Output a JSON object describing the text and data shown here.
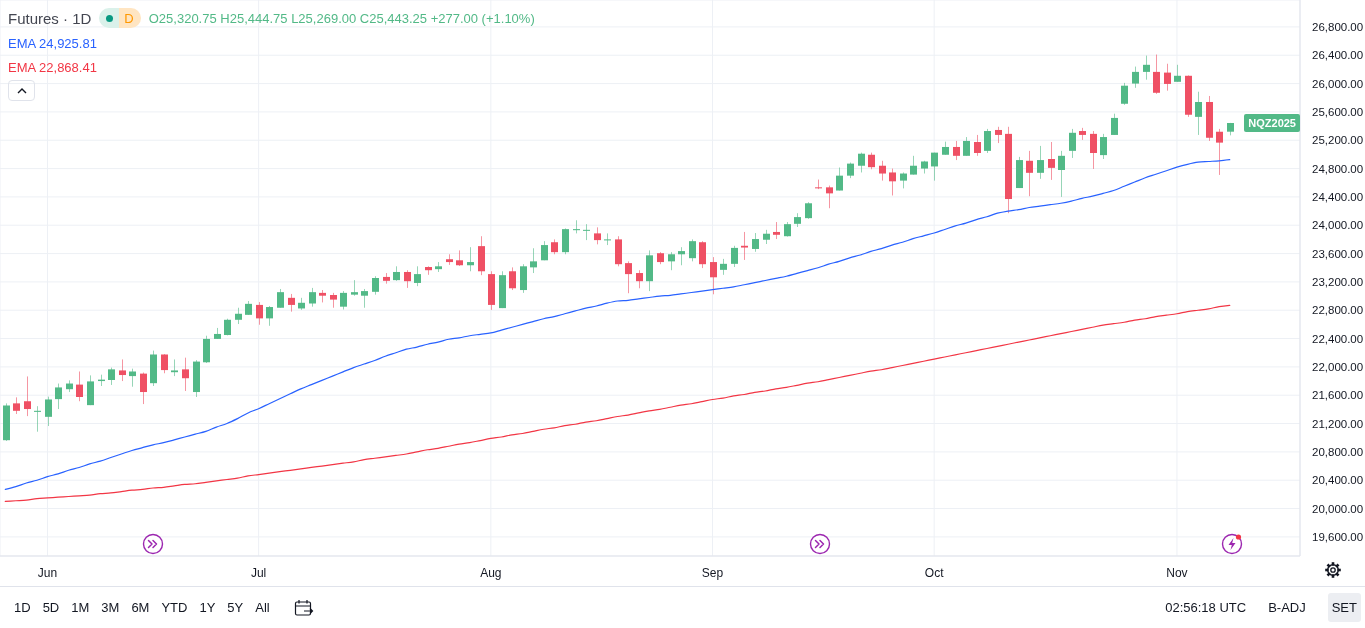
{
  "chart_data": {
    "type": "candlestick",
    "title": "Futures · 1D",
    "categories": [
      null,
      null,
      null,
      null,
      "Jun",
      null,
      null,
      null,
      null,
      null,
      null,
      null,
      null,
      null,
      null,
      null,
      null,
      null,
      null,
      null,
      null,
      null,
      null,
      null,
      "Jul",
      null,
      null,
      null,
      null,
      null,
      null,
      null,
      null,
      null,
      null,
      null,
      null,
      null,
      null,
      null,
      null,
      null,
      null,
      null,
      null,
      null,
      "Aug",
      null,
      null,
      null,
      null,
      null,
      null,
      null,
      null,
      null,
      null,
      null,
      null,
      null,
      null,
      null,
      null,
      null,
      null,
      null,
      null,
      "Sep",
      null,
      null,
      null,
      null,
      null,
      null,
      null,
      null,
      null,
      null,
      null,
      null,
      null,
      null,
      null,
      null,
      null,
      null,
      null,
      null,
      "Oct",
      null,
      null,
      null,
      null,
      null,
      null,
      null,
      null,
      null,
      null,
      null,
      null,
      null,
      null,
      null,
      null,
      null,
      null,
      null,
      null,
      null,
      null,
      "Nov",
      null,
      null,
      null,
      null,
      null
    ],
    "ohlc": [
      [
        20965,
        21485,
        20955,
        21455
      ],
      [
        21485,
        21570,
        21335,
        21380
      ],
      [
        21515,
        21865,
        21305,
        21405
      ],
      [
        21365,
        21445,
        21085,
        21380
      ],
      [
        21295,
        21580,
        21165,
        21540
      ],
      [
        21545,
        21765,
        21405,
        21710
      ],
      [
        21685,
        21810,
        21645,
        21765
      ],
      [
        21750,
        21935,
        21515,
        21575
      ],
      [
        21460,
        21880,
        21460,
        21795
      ],
      [
        21800,
        21890,
        21730,
        21820
      ],
      [
        21815,
        21990,
        21745,
        21965
      ],
      [
        21950,
        22105,
        21800,
        21885
      ],
      [
        21870,
        21975,
        21720,
        21935
      ],
      [
        21905,
        21920,
        21475,
        21645
      ],
      [
        21770,
        22230,
        21730,
        22175
      ],
      [
        22175,
        22180,
        21910,
        21955
      ],
      [
        21925,
        22105,
        21870,
        21950
      ],
      [
        21965,
        22130,
        21660,
        21840
      ],
      [
        21645,
        22095,
        21575,
        22075
      ],
      [
        22065,
        22440,
        22055,
        22395
      ],
      [
        22395,
        22550,
        22395,
        22465
      ],
      [
        22450,
        22680,
        22445,
        22665
      ],
      [
        22665,
        22835,
        22605,
        22750
      ],
      [
        22735,
        22930,
        22735,
        22890
      ],
      [
        22875,
        22915,
        22595,
        22685
      ],
      [
        22685,
        22860,
        22580,
        22845
      ],
      [
        22835,
        23100,
        22835,
        23055
      ],
      [
        22975,
        23030,
        22780,
        22875
      ],
      [
        22825,
        22975,
        22805,
        22905
      ],
      [
        22895,
        23115,
        22850,
        23055
      ],
      [
        23045,
        23085,
        22910,
        23005
      ],
      [
        23015,
        23045,
        22835,
        22950
      ],
      [
        22850,
        23070,
        22810,
        23045
      ],
      [
        23020,
        23225,
        23005,
        23055
      ],
      [
        23005,
        23100,
        22835,
        23070
      ],
      [
        23060,
        23280,
        23020,
        23255
      ],
      [
        23270,
        23325,
        23175,
        23215
      ],
      [
        23225,
        23420,
        23215,
        23340
      ],
      [
        23340,
        23365,
        23115,
        23210
      ],
      [
        23185,
        23420,
        23140,
        23310
      ],
      [
        23410,
        23420,
        23300,
        23365
      ],
      [
        23380,
        23480,
        23340,
        23420
      ],
      [
        23520,
        23590,
        23440,
        23480
      ],
      [
        23505,
        23645,
        23425,
        23435
      ],
      [
        23435,
        23690,
        23350,
        23480
      ],
      [
        23705,
        23845,
        23295,
        23350
      ],
      [
        23310,
        23350,
        22805,
        22875
      ],
      [
        22830,
        23350,
        22830,
        23295
      ],
      [
        23350,
        23405,
        23085,
        23110
      ],
      [
        23085,
        23450,
        23045,
        23420
      ],
      [
        23405,
        23675,
        23325,
        23490
      ],
      [
        23505,
        23775,
        23505,
        23720
      ],
      [
        23760,
        23800,
        23590,
        23620
      ],
      [
        23620,
        23955,
        23590,
        23945
      ],
      [
        23930,
        24070,
        23885,
        23945
      ],
      [
        23925,
        24015,
        23790,
        23935
      ],
      [
        23885,
        23970,
        23730,
        23790
      ],
      [
        23790,
        23885,
        23720,
        23800
      ],
      [
        23800,
        23845,
        23420,
        23450
      ],
      [
        23465,
        23490,
        23040,
        23310
      ],
      [
        23325,
        23365,
        23110,
        23210
      ],
      [
        23210,
        23645,
        23070,
        23575
      ],
      [
        23605,
        23620,
        23450,
        23480
      ],
      [
        23490,
        23620,
        23365,
        23590
      ],
      [
        23590,
        23690,
        23435,
        23635
      ],
      [
        23535,
        23800,
        23490,
        23775
      ],
      [
        23760,
        23775,
        23395,
        23450
      ],
      [
        23480,
        23550,
        23025,
        23265
      ],
      [
        23370,
        23525,
        23300,
        23455
      ],
      [
        23455,
        23710,
        23410,
        23680
      ],
      [
        23710,
        23905,
        23510,
        23685
      ],
      [
        23665,
        23890,
        23625,
        23805
      ],
      [
        23795,
        23935,
        23735,
        23880
      ],
      [
        23905,
        24045,
        23805,
        23865
      ],
      [
        23845,
        24045,
        23840,
        24015
      ],
      [
        24020,
        24170,
        23975,
        24115
      ],
      [
        24100,
        24325,
        24090,
        24310
      ],
      [
        24535,
        24645,
        24510,
        24525
      ],
      [
        24535,
        24560,
        24240,
        24450
      ],
      [
        24490,
        24815,
        24490,
        24700
      ],
      [
        24700,
        24885,
        24665,
        24870
      ],
      [
        24840,
        25025,
        24745,
        25010
      ],
      [
        24995,
        25025,
        24790,
        24820
      ],
      [
        24840,
        24910,
        24630,
        24730
      ],
      [
        24745,
        24800,
        24420,
        24620
      ],
      [
        24630,
        24745,
        24520,
        24730
      ],
      [
        24715,
        24980,
        24715,
        24840
      ],
      [
        24800,
        24910,
        24730,
        24900
      ],
      [
        24830,
        25025,
        24630,
        25025
      ],
      [
        24995,
        25180,
        24995,
        25105
      ],
      [
        25105,
        25190,
        24920,
        24980
      ],
      [
        24980,
        25245,
        24980,
        25190
      ],
      [
        25175,
        25275,
        24980,
        25020
      ],
      [
        25050,
        25360,
        25020,
        25330
      ],
      [
        25345,
        25390,
        25160,
        25275
      ],
      [
        25290,
        25390,
        24170,
        24370
      ],
      [
        24525,
        24965,
        24525,
        24920
      ],
      [
        24910,
        25050,
        24410,
        24740
      ],
      [
        24740,
        25120,
        24655,
        24920
      ],
      [
        24935,
        25175,
        24640,
        24810
      ],
      [
        24780,
        25050,
        24400,
        24980
      ],
      [
        25050,
        25360,
        24950,
        25305
      ],
      [
        25330,
        25375,
        25205,
        25275
      ],
      [
        25290,
        25330,
        24795,
        25020
      ],
      [
        24990,
        25290,
        24935,
        25245
      ],
      [
        25275,
        25575,
        25275,
        25515
      ],
      [
        25715,
        26010,
        25700,
        25970
      ],
      [
        26000,
        26240,
        25940,
        26165
      ],
      [
        26165,
        26395,
        26055,
        26265
      ],
      [
        26165,
        26410,
        25855,
        25870
      ],
      [
        26155,
        26280,
        25900,
        25995
      ],
      [
        26025,
        26265,
        26025,
        26110
      ],
      [
        26110,
        26115,
        25530,
        25560
      ],
      [
        25530,
        25885,
        25275,
        25740
      ],
      [
        25740,
        25825,
        25190,
        25235
      ],
      [
        25320,
        25360,
        24710,
        25166.25
      ],
      [
        25320.75,
        25444.75,
        25269,
        25443.25
      ]
    ],
    "colors": [
      "#52b987",
      "#ef5064",
      "#ef5064",
      "#52b987",
      "#52b987",
      "#52b987",
      "#52b987",
      "#ef5064",
      "#52b987",
      "#52b987",
      "#52b987",
      "#ef5064",
      "#52b987",
      "#ef5064",
      "#52b987",
      "#ef5064",
      "#52b987",
      "#ef5064",
      "#52b987",
      "#52b987",
      "#52b987",
      "#52b987",
      "#52b987",
      "#52b987",
      "#ef5064",
      "#52b987",
      "#52b987",
      "#ef5064",
      "#52b987",
      "#52b987",
      "#ef5064",
      "#ef5064",
      "#52b987",
      "#52b987",
      "#52b987",
      "#52b987",
      "#ef5064",
      "#52b987",
      "#ef5064",
      "#52b987",
      "#ef5064",
      "#52b987",
      "#ef5064",
      "#ef5064",
      "#52b987",
      "#ef5064",
      "#ef5064",
      "#52b987",
      "#ef5064",
      "#52b987",
      "#52b987",
      "#52b987",
      "#ef5064",
      "#52b987",
      "#52b987",
      "#52b987",
      "#ef5064",
      "#52b987",
      "#ef5064",
      "#ef5064",
      "#ef5064",
      "#52b987",
      "#ef5064",
      "#52b987",
      "#52b987",
      "#52b987",
      "#ef5064",
      "#ef5064",
      "#52b987",
      "#52b987",
      "#ef5064",
      "#52b987",
      "#52b987",
      "#ef5064",
      "#52b987",
      "#52b987",
      "#52b987",
      "#ef5064",
      "#ef5064",
      "#52b987",
      "#52b987",
      "#52b987",
      "#ef5064",
      "#ef5064",
      "#ef5064",
      "#52b987",
      "#52b987",
      "#52b987",
      "#52b987",
      "#52b987",
      "#ef5064",
      "#52b987",
      "#ef5064",
      "#52b987",
      "#ef5064",
      "#ef5064",
      "#52b987",
      "#ef5064",
      "#52b987",
      "#ef5064",
      "#52b987",
      "#52b987",
      "#ef5064",
      "#ef5064",
      "#52b987",
      "#52b987",
      "#52b987",
      "#52b987",
      "#52b987",
      "#ef5064",
      "#ef5064",
      "#52b987",
      "#ef5064",
      "#52b987",
      "#ef5064",
      "#ef5064",
      "#52b987"
    ],
    "series": [
      {
        "name": "EMA 24,925.81",
        "type": "line",
        "color": "#2962ff",
        "values": [
          20270,
          20310,
          20360,
          20400,
          20450,
          20490,
          20540,
          20580,
          20630,
          20670,
          20720,
          20770,
          20820,
          20860,
          20900,
          20930,
          20970,
          21010,
          21050,
          21090,
          21150,
          21200,
          21270,
          21350,
          21410,
          21480,
          21550,
          21620,
          21690,
          21750,
          21810,
          21870,
          21930,
          21990,
          22040,
          22090,
          22150,
          22200,
          22250,
          22280,
          22320,
          22350,
          22390,
          22410,
          22440,
          22460,
          22480,
          22520,
          22560,
          22600,
          22640,
          22680,
          22710,
          22750,
          22790,
          22830,
          22860,
          22900,
          22930,
          22940,
          22960,
          22980,
          23000,
          23010,
          23030,
          23050,
          23070,
          23090,
          23110,
          23130,
          23160,
          23190,
          23220,
          23250,
          23280,
          23320,
          23360,
          23400,
          23450,
          23490,
          23540,
          23580,
          23630,
          23670,
          23720,
          23760,
          23810,
          23850,
          23890,
          23940,
          23990,
          24030,
          24080,
          24120,
          24170,
          24200,
          24220,
          24250,
          24270,
          24290,
          24310,
          24340,
          24380,
          24410,
          24450,
          24490,
          24550,
          24610,
          24670,
          24720,
          24770,
          24820,
          24860,
          24890,
          24900,
          24910,
          24925.81
        ]
      },
      {
        "name": "EMA 22,868.41",
        "type": "line",
        "color": "#f23645",
        "values": [
          20100,
          20110,
          20120,
          20140,
          20150,
          20160,
          20170,
          20180,
          20190,
          20210,
          20220,
          20240,
          20260,
          20270,
          20290,
          20300,
          20320,
          20340,
          20350,
          20370,
          20390,
          20410,
          20430,
          20460,
          20480,
          20500,
          20520,
          20540,
          20560,
          20580,
          20600,
          20620,
          20640,
          20660,
          20690,
          20710,
          20730,
          20750,
          20770,
          20800,
          20830,
          20850,
          20880,
          20910,
          20930,
          20960,
          20990,
          21010,
          21040,
          21060,
          21090,
          21120,
          21140,
          21170,
          21190,
          21220,
          21240,
          21270,
          21300,
          21320,
          21350,
          21380,
          21400,
          21430,
          21460,
          21480,
          21510,
          21540,
          21560,
          21590,
          21610,
          21640,
          21660,
          21690,
          21710,
          21740,
          21770,
          21790,
          21820,
          21850,
          21880,
          21910,
          21940,
          21960,
          21990,
          22020,
          22050,
          22080,
          22110,
          22140,
          22170,
          22200,
          22230,
          22260,
          22290,
          22320,
          22350,
          22380,
          22410,
          22440,
          22470,
          22500,
          22530,
          22560,
          22590,
          22610,
          22630,
          22660,
          22680,
          22710,
          22730,
          22750,
          22780,
          22800,
          22820,
          22850,
          22868.41
        ]
      }
    ],
    "ylim": [
      19330,
      27180
    ],
    "yticks": [
      {
        "value": 19600,
        "label": "19,600.00"
      },
      {
        "value": 20000,
        "label": "20,000.00"
      },
      {
        "value": 20400,
        "label": "20,400.00"
      },
      {
        "value": 20800,
        "label": "20,800.00"
      },
      {
        "value": 21200,
        "label": "21,200.00"
      },
      {
        "value": 21600,
        "label": "21,600.00"
      },
      {
        "value": 22000,
        "label": "22,000.00"
      },
      {
        "value": 22400,
        "label": "22,400.00"
      },
      {
        "value": 22800,
        "label": "22,800.00"
      },
      {
        "value": 23200,
        "label": "23,200.00"
      },
      {
        "value": 23600,
        "label": "23,600.00"
      },
      {
        "value": 24000,
        "label": "24,000.00"
      },
      {
        "value": 24400,
        "label": "24,400.00"
      },
      {
        "value": 24800,
        "label": "24,800.00"
      },
      {
        "value": 25200,
        "label": "25,200.00"
      },
      {
        "value": 25600,
        "label": "25,600.00"
      },
      {
        "value": 26000,
        "label": "26,000.00"
      },
      {
        "value": 26400,
        "label": "26,400.00"
      },
      {
        "value": 26800,
        "label": "26,800.00"
      }
    ],
    "grid": true,
    "legend": "top left",
    "annotations": [
      "O25,320.75 H25,444.75 L25,269.00 C25,443.25 +277.00 (+1.10%)",
      "D",
      "NQZ2025",
      "1D",
      "5D",
      "1M",
      "3M",
      "6M",
      "YTD",
      "1Y",
      "5Y",
      "All",
      "02:56:18 UTC",
      "B-ADJ",
      "SET"
    ]
  }
}
